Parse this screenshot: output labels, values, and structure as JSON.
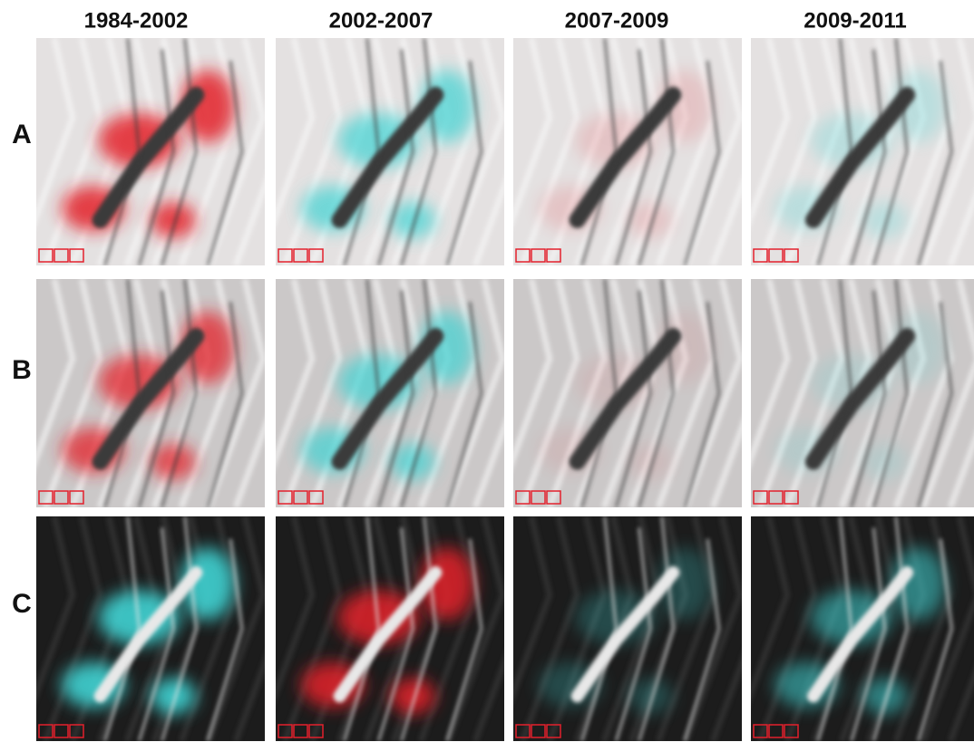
{
  "columns": [
    "1984-2002",
    "2002-2007",
    "2007-2009",
    "2009-2011"
  ],
  "rows": [
    "A",
    "B",
    "C"
  ]
}
